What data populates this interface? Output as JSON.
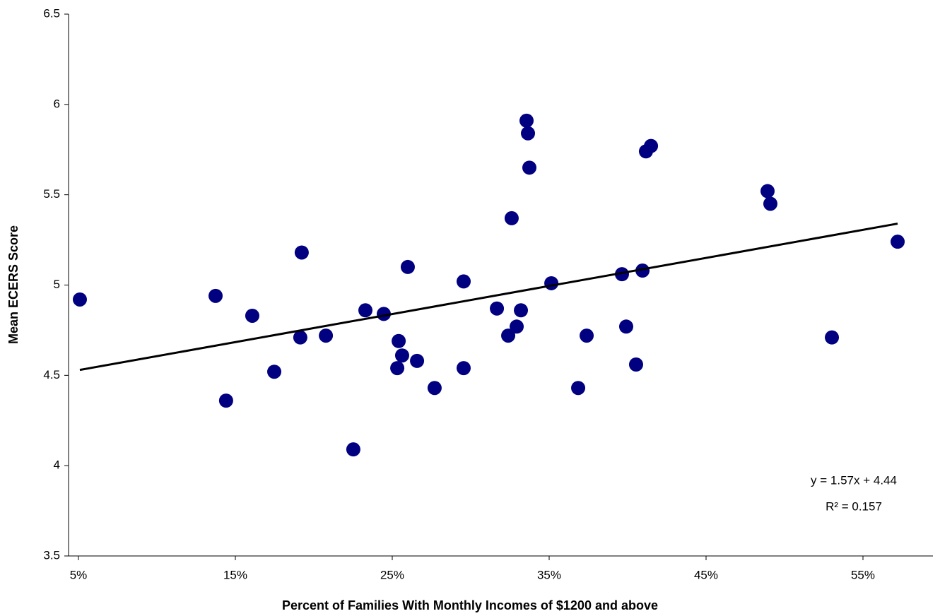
{
  "chart_data": {
    "type": "scatter",
    "xlabel": "Percent of Families With Monthly Incomes of $1200 and above",
    "ylabel": "Mean ECERS Score",
    "color": "#000080",
    "x": [
      0.0509,
      0.1374,
      0.1608,
      0.1441,
      0.1748,
      0.1923,
      0.1914,
      0.2077,
      0.2252,
      0.2329,
      0.2446,
      0.2599,
      0.2541,
      0.2563,
      0.2532,
      0.2658,
      0.277,
      0.2955,
      0.2955,
      0.3167,
      0.3261,
      0.3239,
      0.3293,
      0.332,
      0.3356,
      0.3365,
      0.3374,
      0.3514,
      0.3685,
      0.3739,
      0.3964,
      0.3991,
      0.4054,
      0.4095,
      0.4117,
      0.4149,
      0.4892,
      0.491,
      0.5302,
      0.5721
    ],
    "values": [
      4.92,
      4.94,
      4.83,
      4.36,
      4.52,
      5.18,
      4.71,
      4.72,
      4.09,
      4.86,
      4.84,
      5.1,
      4.69,
      4.61,
      4.54,
      4.58,
      4.43,
      5.02,
      4.54,
      4.87,
      5.37,
      4.72,
      4.77,
      4.86,
      5.91,
      5.84,
      5.65,
      5.01,
      4.43,
      4.72,
      5.06,
      4.77,
      4.56,
      5.08,
      5.74,
      5.77,
      5.52,
      5.45,
      4.71,
      5.24
    ],
    "trendline": {
      "x": [
        0.0509,
        0.5721
      ],
      "values": [
        4.53,
        5.34
      ],
      "color": "#000000"
    },
    "annotations": [
      "y = 1.57x + 4.44",
      "R² = 0.157"
    ],
    "xlim": [
      0.0437,
      0.5946
    ],
    "xticks": [
      {
        "value": 0.05,
        "label": "5%"
      },
      {
        "value": 0.15,
        "label": "15%"
      },
      {
        "value": 0.25,
        "label": "25%"
      },
      {
        "value": 0.35,
        "label": "35%"
      },
      {
        "value": 0.45,
        "label": "45%"
      },
      {
        "value": 0.55,
        "label": "55%"
      }
    ],
    "ylim": [
      3.5,
      6.5
    ],
    "yticks": [
      3.5,
      4,
      4.5,
      5,
      5.5,
      6,
      6.5
    ],
    "grid": false
  }
}
